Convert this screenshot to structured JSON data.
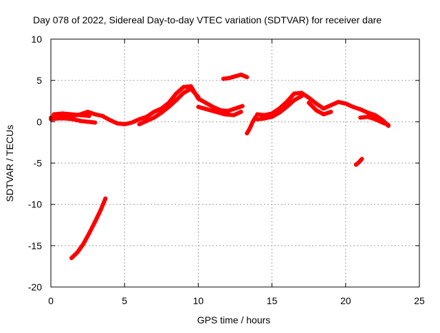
{
  "chart_data": {
    "type": "scatter",
    "title": "Day 078 of 2022, Sidereal Day-to-day VTEC variation (SDTVAR) for receiver dare",
    "xlabel": "GPS time / hours",
    "ylabel": "SDTVAR / TECUs",
    "xlim": [
      0,
      25
    ],
    "ylim": [
      -20,
      10
    ],
    "xticks": [
      0,
      5,
      10,
      15,
      20,
      25
    ],
    "yticks": [
      -20,
      -15,
      -10,
      -5,
      0,
      5,
      10
    ],
    "grid": true,
    "series": [
      {
        "name": "SDTVAR",
        "color": "#ff0000",
        "segments": [
          {
            "x": [
              0.0,
              0.5,
              1.0,
              1.5,
              2.0,
              2.5,
              3.0,
              3.5,
              4.0,
              4.5,
              5.0,
              5.5,
              6.0,
              6.5,
              7.0,
              7.5,
              8.0,
              8.5,
              9.0,
              9.5,
              10.0,
              10.5,
              11.0,
              11.5,
              12.0,
              12.5,
              13.0
            ],
            "y": [
              0.5,
              0.6,
              0.7,
              0.7,
              0.9,
              1.2,
              0.9,
              0.7,
              0.2,
              -0.2,
              -0.3,
              -0.1,
              0.3,
              0.6,
              1.2,
              1.6,
              2.3,
              3.4,
              4.2,
              4.3,
              2.8,
              2.3,
              1.8,
              1.4,
              1.3,
              1.6,
              1.9
            ]
          },
          {
            "x": [
              0.0,
              0.5,
              1.0,
              1.5,
              2.0,
              2.5,
              3.0
            ],
            "y": [
              0.3,
              0.4,
              0.4,
              0.3,
              0.1,
              0.0,
              -0.1
            ]
          },
          {
            "x": [
              0.2,
              0.8,
              1.4,
              2.0,
              2.6
            ],
            "y": [
              0.9,
              1.0,
              0.9,
              0.8,
              0.7
            ]
          },
          {
            "x": [
              6.0,
              6.5,
              7.0,
              7.5,
              8.0,
              8.5,
              9.0,
              9.5,
              10.0
            ],
            "y": [
              -0.3,
              0.1,
              0.5,
              1.1,
              1.8,
              2.6,
              3.5,
              4.0,
              3.0
            ]
          },
          {
            "x": [
              10.0,
              10.6,
              11.2,
              11.8,
              12.4,
              12.9
            ],
            "y": [
              1.8,
              1.5,
              1.2,
              0.9,
              0.8,
              1.2
            ]
          },
          {
            "x": [
              11.7,
              12.1,
              12.5,
              12.9,
              13.3
            ],
            "y": [
              5.2,
              5.3,
              5.5,
              5.7,
              5.4
            ]
          },
          {
            "x": [
              13.3,
              13.5,
              13.7,
              13.9
            ],
            "y": [
              -1.4,
              -0.8,
              0.0,
              0.6
            ]
          },
          {
            "x": [
              14.0,
              14.5,
              15.0,
              15.5,
              16.0,
              16.5,
              17.0,
              17.5,
              18.0,
              18.5,
              19.0,
              19.5,
              20.0,
              20.5,
              21.0,
              21.5,
              22.0,
              22.5,
              22.9
            ],
            "y": [
              0.9,
              0.8,
              1.0,
              1.6,
              2.4,
              3.4,
              3.5,
              2.9,
              2.2,
              1.6,
              2.0,
              2.4,
              2.2,
              1.8,
              1.5,
              1.1,
              0.8,
              0.2,
              -0.5
            ]
          },
          {
            "x": [
              14.0,
              14.5,
              15.0,
              15.5,
              16.0,
              16.5,
              17.0
            ],
            "y": [
              0.3,
              0.4,
              0.6,
              1.1,
              1.8,
              2.6,
              3.1
            ]
          },
          {
            "x": [
              17.5,
              18.0,
              18.5,
              19.0
            ],
            "y": [
              2.3,
              1.4,
              0.9,
              1.2
            ]
          },
          {
            "x": [
              21.0,
              21.5,
              22.0,
              22.5,
              22.9
            ],
            "y": [
              0.5,
              0.6,
              0.3,
              -0.1,
              -0.4
            ]
          },
          {
            "x": [
              20.7,
              20.9,
              21.1
            ],
            "y": [
              -5.2,
              -4.9,
              -4.5
            ]
          },
          {
            "x": [
              1.4,
              1.8,
              2.2,
              2.6,
              3.0,
              3.4,
              3.7
            ],
            "y": [
              -16.5,
              -15.8,
              -14.8,
              -13.5,
              -12.1,
              -10.6,
              -9.3
            ]
          }
        ]
      }
    ]
  }
}
